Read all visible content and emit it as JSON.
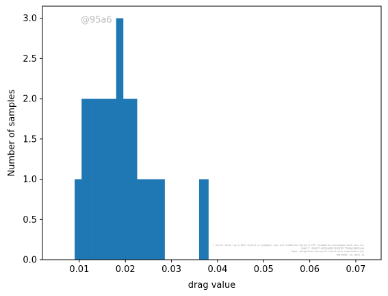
{
  "chart_data": {
    "type": "bar",
    "bins": [
      {
        "x0": 0.009,
        "x1": 0.0105,
        "count": 1
      },
      {
        "x0": 0.0105,
        "x1": 0.012,
        "count": 2
      },
      {
        "x0": 0.012,
        "x1": 0.0135,
        "count": 2
      },
      {
        "x0": 0.0135,
        "x1": 0.015,
        "count": 2
      },
      {
        "x0": 0.015,
        "x1": 0.0165,
        "count": 2
      },
      {
        "x0": 0.0165,
        "x1": 0.018,
        "count": 2
      },
      {
        "x0": 0.018,
        "x1": 0.0195,
        "count": 3
      },
      {
        "x0": 0.0195,
        "x1": 0.021,
        "count": 2
      },
      {
        "x0": 0.021,
        "x1": 0.0225,
        "count": 2
      },
      {
        "x0": 0.0225,
        "x1": 0.024,
        "count": 1
      },
      {
        "x0": 0.024,
        "x1": 0.0255,
        "count": 1
      },
      {
        "x0": 0.0255,
        "x1": 0.027,
        "count": 1
      },
      {
        "x0": 0.027,
        "x1": 0.0285,
        "count": 1
      },
      {
        "x0": 0.0285,
        "x1": 0.03,
        "count": 0
      },
      {
        "x0": 0.036,
        "x1": 0.038,
        "count": 1
      }
    ],
    "xlabel": "drag value",
    "ylabel": "Number of samples",
    "xlim": [
      0.002,
      0.0755
    ],
    "ylim": [
      0,
      3.15
    ],
    "xticks": [
      0.01,
      0.02,
      0.03,
      0.04,
      0.05,
      0.06,
      0.07
    ],
    "xtick_labels": [
      "0.01",
      "0.02",
      "0.03",
      "0.04",
      "0.05",
      "0.06",
      "0.07"
    ],
    "yticks": [
      0,
      0.5,
      1,
      1.5,
      2,
      2.5,
      3
    ],
    "ytick_labels": [
      "0.0",
      "0.5",
      "1.0",
      "1.5",
      "2.0",
      "2.5",
      "3.0"
    ],
    "bar_color": "#1f77b4",
    "grid": false,
    "watermark": "@95a6",
    "footnote_lines": [
      "y Kjetil Olsen Lye @ 2012 <kjetil.o.lye@gmail.com> and Siddhartha Mishra @ ETH <siddhartha.mishra@sam.math.ethz.ch>",
      "Commit: 05e87f1a3d5eab661f8a58f07f78d0e2a889cea0",
      "Repo: git@github.com:kjetil-lye/alsvinn_experiments.git",
      "Hostname: eu-login-16"
    ]
  }
}
